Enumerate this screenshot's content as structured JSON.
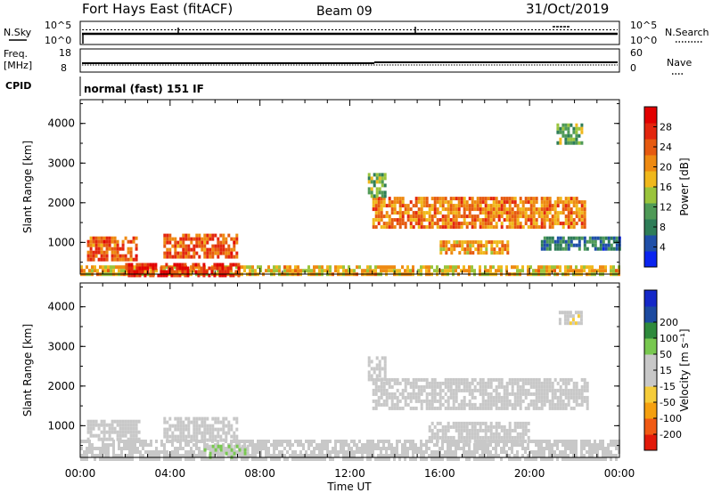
{
  "header": {
    "station": "Fort Hays East (fitACF)",
    "beam": "Beam 09",
    "date": "31/Oct/2019"
  },
  "panels": {
    "nsky": {
      "label": "N.Sky",
      "yticks": [
        "10^5",
        "10^0"
      ]
    },
    "nsearch": {
      "label": "N.Search",
      "yticks": [
        "10^5",
        "10^0"
      ]
    },
    "freq": {
      "label_top": "Freq.",
      "label_bottom": "[MHz]",
      "yticks": [
        "18",
        "8"
      ]
    },
    "nave": {
      "label": "Nave",
      "yticks": [
        "60",
        "0"
      ]
    },
    "cpid": {
      "label": "CPID",
      "mode": "normal (fast) 151 IF"
    }
  },
  "colors": {
    "power_scale": [
      "#0a24f0",
      "#1f4fa8",
      "#2e7d58",
      "#4f9a57",
      "#9ac43c",
      "#f0b81c",
      "#ee8a12",
      "#e65a10",
      "#e3260e",
      "#e20000"
    ],
    "velocity_scale": [
      "#e21a0a",
      "#f05a14",
      "#f5a010",
      "#f5cc3a",
      "#c8c8c8",
      "#c8c8c8",
      "#78c850",
      "#2e8a3c",
      "#1c4aa0",
      "#1428c8"
    ]
  },
  "chart_data": [
    {
      "type": "heatmap",
      "name": "power",
      "ylabel": "Slant Range [km]",
      "yticks": [
        1000,
        2000,
        3000,
        4000
      ],
      "ylim": [
        200,
        4600
      ],
      "colorbar": {
        "label": "Power [dB]",
        "ticks": [
          4,
          8,
          12,
          16,
          20,
          24,
          28
        ],
        "range": [
          0,
          32
        ]
      },
      "regions": [
        {
          "t0": 0.0,
          "t1": 24.0,
          "r0": 200,
          "r1": 420,
          "v": 18
        },
        {
          "t0": 2.0,
          "t1": 7.0,
          "r0": 200,
          "r1": 480,
          "v": 28
        },
        {
          "t0": 0.3,
          "t1": 2.5,
          "r0": 580,
          "r1": 1150,
          "v": 24
        },
        {
          "t0": 3.7,
          "t1": 7.0,
          "r0": 600,
          "r1": 1220,
          "v": 24
        },
        {
          "t0": 13.0,
          "t1": 22.5,
          "r0": 1400,
          "r1": 2150,
          "v": 22
        },
        {
          "t0": 16.0,
          "t1": 19.0,
          "r0": 700,
          "r1": 1050,
          "v": 20
        },
        {
          "t0": 12.8,
          "t1": 13.6,
          "r0": 2150,
          "r1": 2750,
          "v": 12
        },
        {
          "t0": 21.2,
          "t1": 22.3,
          "r0": 3500,
          "r1": 4000,
          "v": 12
        },
        {
          "t0": 20.5,
          "t1": 24.0,
          "r0": 850,
          "r1": 1150,
          "v": 8
        }
      ]
    },
    {
      "type": "heatmap",
      "name": "velocity",
      "ylabel": "Slant Range [km]",
      "yticks": [
        1000,
        2000,
        3000,
        4000
      ],
      "ylim": [
        200,
        4600
      ],
      "colorbar": {
        "label": "Velocity [m s⁻¹]",
        "ticks": [
          -200,
          -100,
          -50,
          -15,
          15,
          50,
          100,
          200
        ],
        "range": [
          -250,
          250
        ]
      },
      "regions": [
        {
          "t0": 0.0,
          "t1": 24.0,
          "r0": 200,
          "r1": 650,
          "v": -35
        },
        {
          "t0": 5.5,
          "t1": 7.5,
          "r0": 200,
          "r1": 520,
          "v": 45
        },
        {
          "t0": 0.3,
          "t1": 2.6,
          "r0": 620,
          "r1": 1150,
          "v": 0
        },
        {
          "t0": 3.7,
          "t1": 7.0,
          "r0": 620,
          "r1": 1220,
          "v": 0
        },
        {
          "t0": 13.0,
          "t1": 22.6,
          "r0": 1400,
          "r1": 2200,
          "v": 0
        },
        {
          "t0": 15.5,
          "t1": 20.0,
          "r0": 650,
          "r1": 1100,
          "v": 0
        },
        {
          "t0": 12.8,
          "t1": 13.6,
          "r0": 2150,
          "r1": 2750,
          "v": 0
        },
        {
          "t0": 21.3,
          "t1": 22.3,
          "r0": 3600,
          "r1": 3900,
          "v": -40
        }
      ]
    }
  ],
  "time_axis": {
    "label": "Time UT",
    "ticks": [
      "00:00",
      "04:00",
      "08:00",
      "12:00",
      "16:00",
      "20:00",
      "00:00"
    ],
    "range_hours": [
      0,
      24
    ]
  }
}
